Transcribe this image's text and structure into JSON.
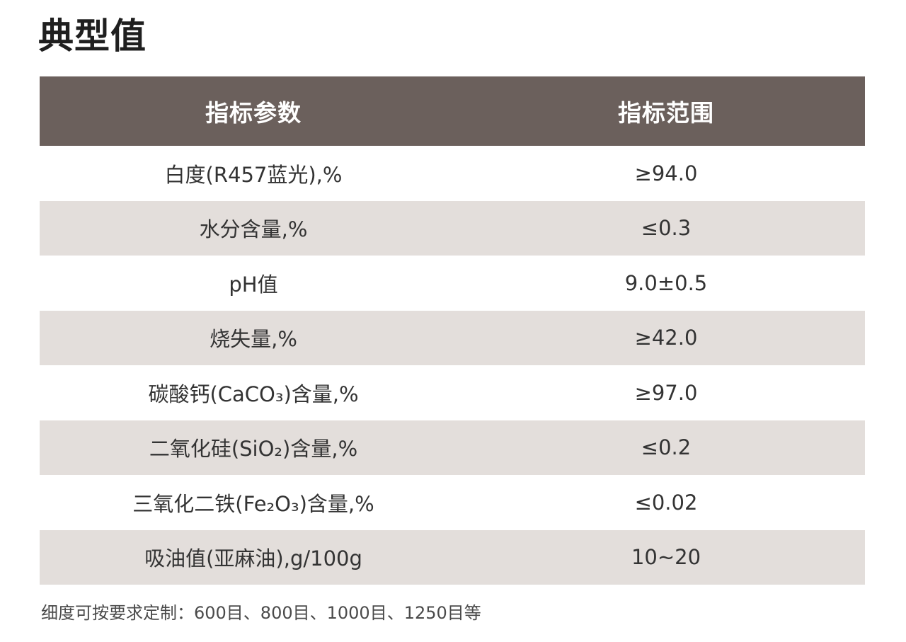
{
  "page_title": "典型值",
  "table": {
    "headers": [
      "指标参数",
      "指标范围"
    ],
    "rows": [
      {
        "param": "白度(R457蓝光),%",
        "range": "≥94.0"
      },
      {
        "param": "水分含量,%",
        "range": "≤0.3"
      },
      {
        "param": "pH值",
        "range": "9.0±0.5"
      },
      {
        "param": "烧失量,%",
        "range": "≥42.0"
      },
      {
        "param": "碳酸钙(CaCO₃)含量,%",
        "range": "≥97.0"
      },
      {
        "param": "二氧化硅(SiO₂)含量,%",
        "range": "≤0.2"
      },
      {
        "param": "三氧化二铁(Fe₂O₃)含量,%",
        "range": "≤0.02"
      },
      {
        "param": "吸油值(亚麻油),g/100g",
        "range": "10~20"
      }
    ]
  },
  "footnote": "细度可按要求定制：600目、800目、1000目、1250目等",
  "colors": {
    "header_bg": "#6b605c",
    "alt_row_bg": "#e3dedb"
  }
}
